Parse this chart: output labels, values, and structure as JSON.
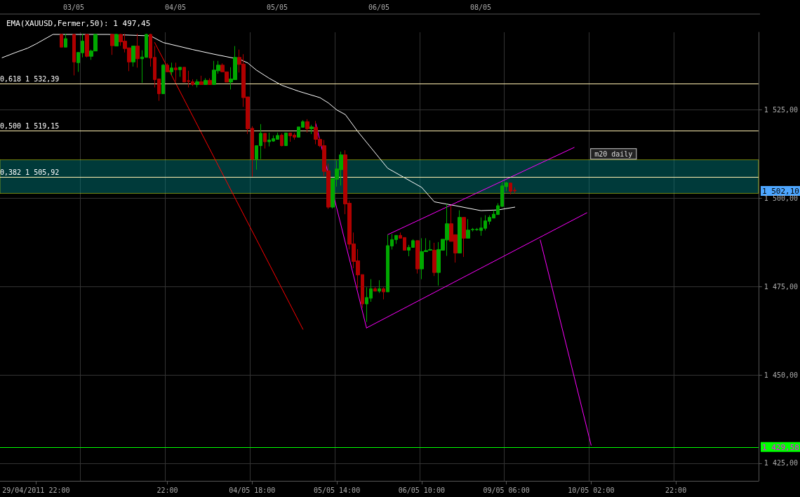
{
  "chart_data": {
    "type": "candlestick",
    "categories": [
      null,
      null,
      null,
      null,
      null,
      null,
      null,
      null,
      "29/04/2011 22:00",
      null,
      null,
      null,
      null,
      null,
      null,
      null,
      null,
      null,
      null,
      null,
      null,
      null,
      null,
      null,
      null,
      null,
      null,
      null,
      null,
      null,
      null,
      null,
      null,
      null,
      null,
      null,
      null,
      null,
      null,
      "22:00",
      null,
      null,
      null,
      null,
      null,
      null,
      null,
      null,
      null,
      null,
      null,
      null,
      null,
      null,
      null,
      null,
      null,
      null,
      null,
      "04/05 18:00",
      null,
      null,
      null,
      null,
      null,
      null,
      null,
      null,
      null,
      null,
      null,
      null,
      null,
      null,
      null,
      null,
      null,
      null,
      null,
      "05/05 14:00",
      null,
      null,
      null,
      null,
      null,
      null,
      null,
      null,
      null,
      null,
      null,
      null,
      null,
      null,
      null,
      null,
      null,
      null,
      null,
      "06/05 10:00",
      null,
      null,
      null,
      null,
      null,
      null,
      null,
      null,
      null,
      null,
      null,
      null,
      null,
      null,
      null,
      null,
      null,
      null,
      null,
      "09/05 06:00",
      null,
      null,
      null,
      null,
      null,
      null,
      null,
      null,
      null,
      null,
      null,
      null,
      null,
      null,
      null,
      null,
      null,
      null,
      null,
      "10/05 02:00",
      null,
      null,
      null,
      null,
      null,
      null,
      null,
      null,
      null,
      null,
      null,
      null,
      null,
      null,
      null,
      null,
      null,
      null,
      null,
      "22:00",
      null,
      null,
      null,
      null,
      null,
      null,
      null,
      null,
      null,
      null,
      null,
      null,
      null,
      null,
      null,
      null,
      null,
      null,
      null
    ],
    "ylim": [
      1420,
      1547
    ],
    "yticks": [
      {
        "value": 1425,
        "label": "1 425,00"
      },
      {
        "value": 1450,
        "label": "1 450,00"
      },
      {
        "value": 1475,
        "label": "1 475,00"
      },
      {
        "value": 1500,
        "label": "1 500,00"
      },
      {
        "value": 1525,
        "label": "1 525,00"
      }
    ],
    "grid": true,
    "legend": "top left",
    "marker": "none",
    "line_style": "solid",
    "series": [
      {
        "ohlc": [
          null,
          null,
          null,
          null,
          null,
          null,
          null,
          null,
          null,
          null,
          null,
          null,
          null,
          null,
          [
            1546.4,
            1546.6,
            1542.8,
            1542.8
          ],
          [
            1542.8,
            1546.6,
            1542.8,
            1545.2
          ],
          null,
          [
            1546.4,
            1546.6,
            1534.8,
            1538.6
          ],
          [
            1538.4,
            1541.3,
            1535.8,
            1541.3
          ],
          [
            1541.2,
            1546.6,
            1539.9,
            1544.5
          ],
          [
            1546.4,
            1546.6,
            1539.9,
            1540.2
          ],
          [
            1540.2,
            1542.1,
            1539.2,
            1541.7
          ],
          [
            1541.7,
            1546.6,
            1541.7,
            1546.4
          ],
          null,
          null,
          null,
          [
            1546.4,
            1546.6,
            1540.6,
            1543.2
          ],
          [
            1543.1,
            1546.6,
            1543.1,
            1546.4
          ],
          [
            1546.4,
            1546.6,
            1543.2,
            1544.3
          ],
          [
            1544.5,
            1546.6,
            1541.3,
            1542.4
          ],
          [
            1542.6,
            1542.6,
            1536.0,
            1538.6
          ],
          [
            1538.6,
            1543.1,
            1537.3,
            1543.1
          ],
          [
            1543.1,
            1546.6,
            1537.0,
            1539.5
          ],
          [
            1539.5,
            1541.9,
            1532.7,
            1540.0
          ],
          [
            1539.9,
            1546.6,
            1539.9,
            1546.4
          ],
          [
            1546.4,
            1546.6,
            1537.3,
            1539.7
          ],
          [
            1539.9,
            1543.1,
            1531.4,
            1533.6
          ],
          [
            1533.8,
            1533.8,
            1527.6,
            1529.6
          ],
          [
            1529.6,
            1538.0,
            1529.6,
            1537.7
          ],
          [
            1537.7,
            1538.2,
            1535.8,
            1535.8
          ],
          [
            1535.8,
            1538.4,
            1534.7,
            1536.9
          ],
          [
            1536.9,
            1538.4,
            1533.1,
            1536.4
          ],
          [
            1536.4,
            1537.1,
            1534.4,
            1537.1
          ],
          [
            1537.1,
            1537.1,
            1532.9,
            1532.9
          ],
          [
            1533.3,
            1536.1,
            1531.4,
            1533.1
          ],
          [
            1533.0,
            1533.7,
            1531.8,
            1532.2
          ],
          [
            1532.2,
            1533.7,
            1531.4,
            1533.0
          ],
          [
            1533.0,
            1534.7,
            1532.2,
            1532.2
          ],
          [
            1532.2,
            1534.0,
            1532.2,
            1533.4
          ],
          [
            1533.4,
            1534.0,
            1532.2,
            1532.2
          ],
          [
            1532.2,
            1538.9,
            1532.2,
            1536.3
          ],
          [
            1536.1,
            1538.9,
            1535.3,
            1537.7
          ],
          [
            1537.7,
            1538.2,
            1535.8,
            1535.8
          ],
          [
            1535.8,
            1535.8,
            1532.9,
            1532.9
          ],
          [
            1532.9,
            1537.1,
            1530.8,
            1533.8
          ],
          [
            1533.6,
            1543.1,
            1533.6,
            1539.9
          ],
          [
            1539.9,
            1542.1,
            1535.6,
            1537.9
          ],
          [
            1538.0,
            1540.8,
            1525.9,
            1528.5
          ],
          [
            1528.7,
            1528.7,
            1518.2,
            1519.7
          ],
          [
            1519.8,
            1520.4,
            1506.1,
            1511.1
          ],
          [
            1511.1,
            1514.9,
            1508.1,
            1514.9
          ],
          [
            1514.9,
            1521.0,
            1511.1,
            1518.4
          ],
          [
            1518.4,
            1518.4,
            1514.1,
            1516.0
          ],
          [
            1516.0,
            1518.6,
            1514.7,
            1516.5
          ],
          [
            1516.2,
            1517.8,
            1516.0,
            1516.9
          ],
          [
            1516.7,
            1518.6,
            1516.7,
            1517.8
          ],
          [
            1517.9,
            1518.4,
            1514.7,
            1514.9
          ],
          [
            1514.9,
            1518.5,
            1514.9,
            1518.5
          ],
          [
            1518.5,
            1518.5,
            1516.0,
            1517.7
          ],
          [
            1517.9,
            1518.5,
            1516.6,
            1517.3
          ],
          [
            1517.3,
            1520.2,
            1517.3,
            1520.2
          ],
          [
            1520.1,
            1522.1,
            1520.1,
            1521.7
          ],
          [
            1521.7,
            1522.4,
            1518.6,
            1519.7
          ],
          [
            1519.7,
            1520.8,
            1518.2,
            1520.2
          ],
          [
            1520.1,
            1521.9,
            1515.3,
            1516.7
          ],
          [
            1516.7,
            1517.2,
            1514.5,
            1514.9
          ],
          [
            1514.9,
            1516.5,
            1506.3,
            1507.6
          ],
          [
            1507.8,
            1509.8,
            1497.0,
            1497.5
          ],
          [
            1497.5,
            1505.6,
            1497.1,
            1505.6
          ],
          [
            1505.4,
            1510.7,
            1503.3,
            1508.3
          ],
          [
            1508.1,
            1513.2,
            1503.6,
            1512.3
          ],
          [
            1512.3,
            1513.6,
            1495.5,
            1498.4
          ],
          [
            1498.6,
            1499.4,
            1485.5,
            1487.0
          ],
          [
            1487.1,
            1490.3,
            1480.2,
            1482.1
          ],
          [
            1482.3,
            1485.6,
            1474.5,
            1478.3
          ],
          [
            1478.4,
            1478.4,
            1469.0,
            1470.1
          ],
          [
            1470.1,
            1474.8,
            1465.0,
            1471.9
          ],
          [
            1471.7,
            1477.1,
            1470.7,
            1474.4
          ],
          [
            1474.4,
            1474.8,
            1473.7,
            1473.7
          ],
          [
            1473.7,
            1476.8,
            1473.2,
            1474.4
          ],
          [
            1474.4,
            1474.8,
            1471.4,
            1473.5
          ],
          [
            1473.5,
            1489.7,
            1473.5,
            1486.6
          ],
          [
            1486.5,
            1489.9,
            1485.5,
            1488.3
          ],
          [
            1488.3,
            1489.5,
            1487.1,
            1489.5
          ],
          [
            1489.5,
            1490.3,
            1488.7,
            1488.7
          ],
          [
            1488.9,
            1488.9,
            1485.3,
            1485.3
          ],
          [
            1485.3,
            1486.8,
            1483.6,
            1486.1
          ],
          [
            1486.1,
            1488.4,
            1486.1,
            1488.0
          ],
          [
            1488.0,
            1488.1,
            1478.7,
            1480.0
          ],
          [
            1480.0,
            1488.7,
            1477.1,
            1484.9
          ],
          [
            1484.9,
            1488.7,
            1484.9,
            1485.2
          ],
          [
            1485.3,
            1488.1,
            1485.3,
            1485.5
          ],
          [
            1485.3,
            1487.4,
            1478.0,
            1479.0
          ],
          [
            1479.0,
            1487.6,
            1475.3,
            1485.5
          ],
          [
            1485.3,
            1488.4,
            1485.3,
            1488.4
          ],
          [
            1488.2,
            1498.4,
            1483.7,
            1492.8
          ],
          [
            1492.8,
            1497.9,
            1487.8,
            1487.8
          ],
          [
            1489.7,
            1489.7,
            1481.8,
            1484.5
          ],
          [
            1484.5,
            1496.6,
            1484.5,
            1494.6
          ],
          [
            1494.6,
            1494.6,
            1483.4,
            1488.7
          ],
          [
            1488.7,
            1494.1,
            1488.7,
            1491.0
          ],
          [
            1491.1,
            1491.6,
            1490.6,
            1491.2
          ],
          [
            1491.1,
            1491.6,
            1490.8,
            1491.2
          ],
          [
            1490.9,
            1494.6,
            1489.4,
            1491.6
          ],
          [
            1491.5,
            1495.2,
            1490.9,
            1493.6
          ],
          [
            1493.5,
            1495.2,
            1492.6,
            1494.6
          ],
          [
            1494.4,
            1496.6,
            1494.4,
            1495.5
          ],
          [
            1495.4,
            1498.6,
            1495.4,
            1497.9
          ],
          [
            1497.7,
            1504.6,
            1497.6,
            1503.5
          ],
          [
            1503.3,
            1504.6,
            1502.0,
            1504.4
          ],
          [
            1504.3,
            1504.4,
            1501.1,
            1502.0
          ],
          [
            1502.3,
            1503.1,
            1501.4,
            1502.1
          ],
          null,
          null,
          null,
          null,
          null,
          null,
          null,
          null,
          null,
          null,
          null,
          null,
          null,
          null,
          null,
          null,
          null,
          null,
          null,
          null,
          null,
          null,
          null,
          null,
          null,
          null,
          null,
          null,
          null,
          null,
          null,
          null,
          null,
          null,
          null,
          null,
          null,
          null,
          null,
          null,
          null,
          null,
          null,
          null,
          null,
          null,
          null,
          null,
          null,
          null,
          null,
          null,
          null,
          null,
          null,
          null,
          null
        ],
        "colors": [
          null,
          null,
          null,
          null,
          null,
          null,
          null,
          null,
          null,
          null,
          null,
          null,
          null,
          null,
          "#b00000",
          "#00a800",
          null,
          "#b00000",
          "#00a800",
          "#00a800",
          "#b00000",
          "#00a800",
          "#00a800",
          null,
          null,
          null,
          "#b00000",
          "#00a800",
          "#b00000",
          "#b00000",
          "#b00000",
          "#00a800",
          "#b00000",
          "#00a800",
          "#00a800",
          "#b00000",
          "#b00000",
          "#b00000",
          "#00a800",
          "#b00000",
          "#00a800",
          "#b00000",
          "#00a800",
          "#b00000",
          "#b00000",
          "#b00000",
          "#00a800",
          "#b00000",
          "#00a800",
          "#b00000",
          "#00a800",
          "#00a800",
          "#b00000",
          "#b00000",
          "#00a800",
          "#00a800",
          "#b00000",
          "#b00000",
          "#b00000",
          "#b00000",
          "#00a800",
          "#00a800",
          "#b00000",
          "#00a800",
          "#00a800",
          "#00a800",
          "#b00000",
          "#00a800",
          "#b00000",
          "#b00000",
          "#00a800",
          "#00a800",
          "#b00000",
          "#00a800",
          "#b00000",
          "#b00000",
          "#b00000",
          "#b00000",
          "#00a800",
          "#00a800",
          "#00a800",
          "#b00000",
          "#b00000",
          "#b00000",
          "#b00000",
          "#b00000",
          "#00a800",
          "#00a800",
          "#b00000",
          "#00a800",
          "#b00000",
          "#00a800",
          "#00a800",
          "#00a800",
          "#b00000",
          "#b00000",
          "#00a800",
          "#00a800",
          "#b00000",
          "#00a800",
          "#00a800",
          "#00a800",
          "#b00000",
          "#00a800",
          "#00a800",
          "#00a800",
          "#b00000",
          "#b00000",
          "#00a800",
          "#b00000",
          "#00a800",
          "#00a800",
          "#00a800",
          "#00a800",
          "#00a800",
          "#00a800",
          "#00a800",
          "#00a800",
          "#00a800",
          "#00a800",
          "#b00000",
          "#b00000",
          null,
          null,
          null,
          null,
          null,
          null,
          null,
          null,
          null,
          null,
          null,
          null,
          null,
          null,
          null,
          null,
          null,
          null,
          null,
          null,
          null,
          null,
          null,
          null,
          null,
          null,
          null,
          null,
          null,
          null,
          null,
          null,
          null,
          null,
          null,
          null,
          null,
          null,
          null,
          null,
          null,
          null,
          null,
          null,
          null,
          null,
          null,
          null,
          null,
          null,
          null,
          null,
          null,
          null,
          null,
          null,
          null
        ],
        "value_labels": [
          null,
          null,
          null,
          null,
          null,
          null,
          null,
          null,
          null,
          null,
          null,
          null,
          null,
          null,
          null,
          null,
          null,
          null,
          null,
          null,
          null,
          null,
          null,
          null,
          null,
          null,
          null,
          null,
          null,
          null,
          null,
          null,
          null,
          null,
          null,
          null,
          null,
          null,
          null,
          null,
          null,
          null,
          null,
          null,
          null,
          null,
          null,
          null,
          null,
          null,
          null,
          null,
          null,
          null,
          null,
          null,
          null,
          null,
          null,
          null,
          null,
          null,
          null,
          null,
          null,
          null,
          null,
          null,
          null,
          null,
          null,
          null,
          null,
          null,
          null,
          null,
          null,
          null,
          null,
          null,
          null,
          null,
          null,
          null,
          null,
          null,
          null,
          null,
          null,
          null,
          null,
          null,
          null,
          null,
          null,
          null,
          null,
          null,
          null,
          null,
          null,
          null,
          null,
          null,
          null,
          null,
          null,
          null,
          null,
          null,
          null,
          null,
          null,
          null,
          null,
          null,
          null,
          null,
          null,
          null,
          null,
          "1 502,10",
          null,
          null,
          null,
          null,
          null,
          null,
          null,
          null,
          null,
          null,
          null,
          null,
          null,
          null,
          null,
          null,
          null,
          null,
          null,
          null,
          null,
          null,
          null,
          null,
          null,
          null,
          null,
          null,
          null,
          null,
          null,
          null,
          null,
          null,
          null,
          null,
          null,
          null,
          null,
          null,
          null,
          null,
          null,
          null,
          null,
          null,
          null,
          null,
          null,
          null,
          null,
          null,
          null,
          null,
          null,
          null,
          null
        ]
      },
      {
        "type": "line",
        "name": "EMA(XAUUSD,Fermer,50): 1 497,45",
        "color": "#ffffff",
        "values": [
          1539.8,
          null,
          null,
          1541.2,
          null,
          null,
          1542.5,
          null,
          1543.7,
          null,
          null,
          null,
          1546.4,
          null,
          null,
          null,
          null,
          null,
          null,
          null,
          null,
          null,
          null,
          null,
          null,
          1546.4,
          null,
          null,
          null,
          null,
          null,
          null,
          null,
          null,
          null,
          1546.0,
          null,
          null,
          1544.1,
          null,
          null,
          null,
          null,
          null,
          null,
          1542.1,
          null,
          null,
          null,
          null,
          1540.8,
          null,
          null,
          null,
          null,
          1539.6,
          1539.4,
          null,
          1538.3,
          null,
          1536.3,
          null,
          null,
          1534.0,
          null,
          null,
          1532.0,
          null,
          null,
          null,
          1530.3,
          null,
          null,
          null,
          null,
          1528.5,
          null,
          1527.0,
          null,
          1525.0,
          null,
          1523.7,
          null,
          null,
          1518.8,
          null,
          null,
          1514.4,
          null,
          null,
          null,
          1508.5,
          null,
          null,
          null,
          1505.8,
          null,
          null,
          null,
          1503.1,
          null,
          null,
          1499.0,
          null,
          null,
          null,
          null,
          1497.9,
          null,
          null,
          null,
          null,
          null,
          1496.5,
          null,
          null,
          null,
          1496.7,
          null,
          null,
          null,
          1497.5,
          null,
          null,
          null,
          null,
          null,
          null,
          null,
          null,
          null,
          null,
          null,
          null,
          null,
          null,
          null,
          null,
          null,
          null,
          null,
          null,
          null,
          null,
          null,
          null,
          null,
          null,
          null,
          null,
          null,
          null,
          null,
          null,
          null,
          null,
          null,
          null,
          null,
          null,
          null,
          null,
          null,
          null,
          null,
          null,
          null,
          null,
          null,
          null,
          null,
          null,
          null,
          null,
          null,
          null,
          null,
          null,
          null
        ]
      },
      {
        "type": "line",
        "color": "#ff0000",
        "values": [
          null,
          null,
          null,
          null,
          null,
          null,
          null,
          null,
          null,
          null,
          null,
          null,
          null,
          null,
          null,
          null,
          null,
          null,
          null,
          null,
          null,
          null,
          null,
          null,
          null,
          null,
          null,
          null,
          null,
          null,
          null,
          null,
          null,
          null,
          null,
          null,
          1544.1,
          null,
          null,
          null,
          null,
          null,
          null,
          null,
          null,
          null,
          null,
          null,
          null,
          null,
          null,
          null,
          null,
          null,
          null,
          null,
          null,
          null,
          null,
          null,
          null,
          null,
          null,
          null,
          null,
          null,
          null,
          null,
          null,
          null,
          null,
          1462.9,
          null,
          null,
          null,
          null,
          null,
          null,
          null,
          null,
          null,
          null,
          null,
          null,
          null,
          null,
          null,
          null,
          null,
          null,
          null,
          null,
          null,
          null,
          null,
          null,
          null,
          null,
          null,
          null,
          null,
          null,
          null,
          null,
          null,
          null,
          null,
          null,
          null,
          null,
          null,
          null,
          null,
          null,
          null,
          null,
          null,
          null,
          null,
          null,
          null,
          null,
          null,
          null,
          null,
          null,
          null,
          null,
          null,
          null,
          null,
          null,
          null,
          null,
          null,
          null,
          null,
          null,
          null,
          null,
          null,
          null,
          null,
          null,
          null,
          null,
          null,
          null,
          null,
          null,
          null,
          null,
          null,
          null,
          null,
          null,
          null,
          null,
          null,
          null,
          null,
          null,
          null,
          null,
          null,
          null,
          null,
          null,
          null,
          null,
          null,
          null,
          null,
          null,
          null,
          null,
          null,
          null,
          null
        ]
      },
      {
        "type": "line",
        "color": "#ff00ff",
        "values": [
          null,
          null,
          null,
          null,
          null,
          null,
          null,
          null,
          null,
          null,
          null,
          null,
          null,
          null,
          null,
          null,
          null,
          null,
          null,
          null,
          null,
          null,
          null,
          null,
          null,
          null,
          null,
          null,
          null,
          null,
          null,
          null,
          null,
          null,
          null,
          null,
          null,
          null,
          null,
          null,
          null,
          null,
          null,
          null,
          null,
          null,
          null,
          null,
          null,
          null,
          null,
          null,
          null,
          null,
          null,
          null,
          null,
          null,
          null,
          null,
          null,
          null,
          null,
          null,
          null,
          null,
          null,
          null,
          null,
          null,
          null,
          null,
          null,
          null,
          1521.2,
          null,
          null,
          null,
          null,
          null,
          null,
          null,
          null,
          null,
          null,
          null,
          1463.3,
          null,
          null,
          null,
          null,
          null,
          null,
          null,
          null,
          null,
          null,
          null,
          null,
          null,
          null,
          null,
          null,
          null,
          null,
          null,
          null,
          null,
          null,
          null,
          null,
          null,
          null,
          null,
          null,
          null,
          null,
          null,
          null,
          null,
          null,
          null,
          null,
          null,
          null,
          null,
          null,
          null,
          null,
          null,
          null,
          null,
          null,
          null,
          null,
          null,
          null,
          null,
          null,
          null,
          null,
          null,
          null,
          null,
          null,
          null,
          null,
          null,
          null,
          null,
          null,
          null,
          null,
          null,
          null,
          null,
          null,
          null,
          null,
          null,
          null,
          null,
          null,
          null,
          null,
          null,
          null,
          null,
          null,
          null,
          null,
          null,
          null,
          null,
          null,
          null,
          null,
          null,
          null
        ]
      },
      {
        "type": "line",
        "color": "#ff00ff",
        "values": [
          null,
          null,
          null,
          null,
          null,
          null,
          null,
          null,
          null,
          null,
          null,
          null,
          null,
          null,
          null,
          null,
          null,
          null,
          null,
          null,
          null,
          null,
          null,
          null,
          null,
          null,
          null,
          null,
          null,
          null,
          null,
          null,
          null,
          null,
          null,
          null,
          null,
          null,
          null,
          null,
          null,
          null,
          null,
          null,
          null,
          null,
          null,
          null,
          null,
          null,
          null,
          null,
          null,
          null,
          null,
          null,
          null,
          null,
          null,
          null,
          null,
          null,
          null,
          null,
          null,
          null,
          null,
          null,
          null,
          null,
          null,
          null,
          null,
          null,
          null,
          null,
          null,
          null,
          null,
          null,
          null,
          null,
          null,
          null,
          null,
          null,
          null,
          null,
          null,
          null,
          null,
          1489.7,
          null,
          null,
          null,
          null,
          null,
          null,
          null,
          null,
          null,
          null,
          null,
          null,
          null,
          null,
          null,
          null,
          null,
          null,
          null,
          null,
          null,
          null,
          null,
          null,
          null,
          null,
          null,
          null,
          null,
          null,
          null,
          null,
          null,
          null,
          null,
          null,
          null,
          null,
          null,
          null,
          null,
          null,
          null,
          1514.4,
          null,
          null,
          null,
          null,
          null,
          null,
          null,
          null,
          null,
          null,
          null,
          null,
          null,
          null,
          null,
          null,
          null,
          null,
          null,
          null,
          null,
          null,
          null,
          null,
          null,
          null,
          null,
          null,
          null,
          null,
          null,
          null,
          null,
          null,
          null,
          null,
          null,
          null,
          null,
          null,
          null,
          null,
          null
        ]
      },
      {
        "type": "line",
        "color": "#ff00ff",
        "values": [
          null,
          null,
          null,
          null,
          null,
          null,
          null,
          null,
          null,
          null,
          null,
          null,
          null,
          null,
          null,
          null,
          null,
          null,
          null,
          null,
          null,
          null,
          null,
          null,
          null,
          null,
          null,
          null,
          null,
          null,
          null,
          null,
          null,
          null,
          null,
          null,
          null,
          null,
          null,
          null,
          null,
          null,
          null,
          null,
          null,
          null,
          null,
          null,
          null,
          null,
          null,
          null,
          null,
          null,
          null,
          null,
          null,
          null,
          null,
          null,
          null,
          null,
          null,
          null,
          null,
          null,
          null,
          null,
          null,
          null,
          null,
          null,
          null,
          null,
          null,
          null,
          null,
          null,
          null,
          null,
          null,
          null,
          null,
          null,
          null,
          null,
          1463.3,
          null,
          null,
          null,
          null,
          null,
          null,
          null,
          null,
          null,
          null,
          null,
          null,
          null,
          null,
          null,
          null,
          null,
          null,
          null,
          null,
          null,
          null,
          null,
          null,
          null,
          null,
          null,
          null,
          null,
          null,
          null,
          null,
          null,
          null,
          null,
          null,
          null,
          null,
          null,
          null,
          null,
          null,
          null,
          null,
          null,
          null,
          null,
          null,
          null,
          null,
          null,
          1495.9,
          null,
          null,
          null,
          null,
          null,
          null,
          null,
          null,
          null,
          null,
          null,
          null,
          null,
          null,
          null,
          null,
          null,
          null,
          null,
          null,
          null,
          null,
          null,
          null,
          null,
          null,
          null,
          null,
          null,
          null,
          null,
          null,
          null,
          null,
          null,
          null,
          null,
          null,
          null,
          null
        ]
      },
      {
        "type": "line",
        "color": "#ff00ff",
        "values": [
          null,
          null,
          null,
          null,
          null,
          null,
          null,
          null,
          null,
          null,
          null,
          null,
          null,
          null,
          null,
          null,
          null,
          null,
          null,
          null,
          null,
          null,
          null,
          null,
          null,
          null,
          null,
          null,
          null,
          null,
          null,
          null,
          null,
          null,
          null,
          null,
          null,
          null,
          null,
          null,
          null,
          null,
          null,
          null,
          null,
          null,
          null,
          null,
          null,
          null,
          null,
          null,
          null,
          null,
          null,
          null,
          null,
          null,
          null,
          null,
          null,
          null,
          null,
          null,
          null,
          null,
          null,
          null,
          null,
          null,
          null,
          null,
          null,
          null,
          null,
          null,
          null,
          null,
          null,
          null,
          null,
          null,
          null,
          null,
          null,
          null,
          null,
          null,
          null,
          null,
          null,
          null,
          null,
          null,
          null,
          null,
          null,
          null,
          null,
          null,
          null,
          null,
          null,
          null,
          null,
          null,
          null,
          null,
          null,
          null,
          null,
          null,
          null,
          null,
          null,
          null,
          null,
          null,
          null,
          null,
          null,
          null,
          null,
          null,
          null,
          null,
          null,
          1488.2,
          null,
          null,
          null,
          null,
          null,
          null,
          null,
          null,
          null,
          null,
          null,
          1430.1,
          null,
          null,
          null,
          null,
          null,
          null,
          null,
          null,
          null,
          null,
          null,
          null,
          null,
          null,
          null,
          null,
          null,
          null,
          null,
          null,
          null,
          null,
          null,
          null,
          null,
          null,
          null,
          null,
          null,
          null,
          null,
          null,
          null,
          null,
          null,
          null,
          null,
          null,
          null
        ]
      }
    ],
    "ref_lines": [
      {
        "axis": "y",
        "value": 1532.39,
        "label": "0,618 1 532,39",
        "color": "#fff0b0"
      },
      {
        "axis": "y",
        "value": 1519.15,
        "label": "0,500 1 519,15",
        "color": "#fff0b0"
      },
      {
        "axis": "y",
        "value": 1505.92,
        "label": "0,382 1 505,92",
        "color": "#fff0b0"
      },
      {
        "axis": "y",
        "value": 1429.58,
        "label": "1 429,58",
        "color": "#00ff00"
      }
    ],
    "bands": [
      {
        "axis": "y",
        "from": 1501.4,
        "to": 1510.9,
        "label": "m20 daily",
        "color": "#008080"
      }
    ],
    "annotations": [
      "03/05",
      "04/05",
      "05/05",
      "06/05",
      "08/05"
    ]
  }
}
